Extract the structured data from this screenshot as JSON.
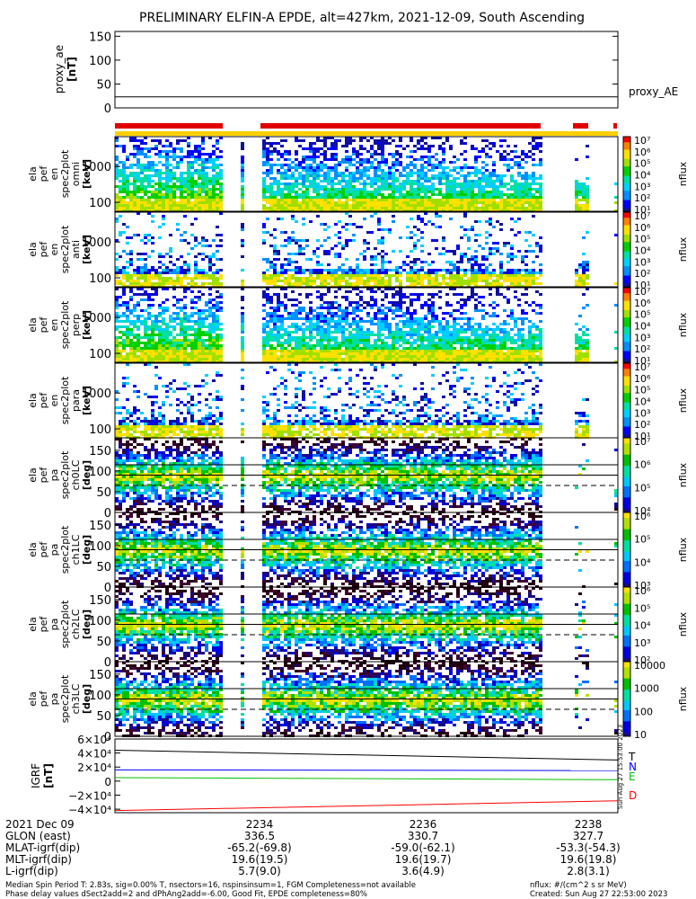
{
  "title": "PRELIMINARY ELFIN-A EPDE, alt=427km, 2021-12-09, South Ascending",
  "chart_data": [
    {
      "type": "line",
      "panel": "proxy_ae",
      "ylabel": [
        "proxy_ae",
        "[nT]"
      ],
      "yticks": [
        "150",
        "100",
        "50",
        "0"
      ],
      "ylim": [
        0,
        160
      ],
      "series": [
        {
          "name": "proxy_AE",
          "values": [
            23,
            23
          ]
        }
      ],
      "legend": "proxy_AE"
    },
    {
      "type": "heatmap",
      "panel": "ela_pef_en_spec2plot_omni",
      "ylabel": [
        "ela",
        "pef",
        "en",
        "spec2plot",
        "omni",
        "[keV]"
      ],
      "yticks": [
        "1000",
        "100"
      ],
      "cbar": {
        "label": "nflux",
        "ticks": [
          "10⁷",
          "10⁶",
          "10⁵",
          "10⁴",
          "10³",
          "10²",
          "10¹"
        ]
      }
    },
    {
      "type": "heatmap",
      "panel": "ela_pef_en_spec2plot_anti",
      "ylabel": [
        "ela",
        "pef",
        "en",
        "spec2plot",
        "anti",
        "[keV]"
      ],
      "yticks": [
        "1000",
        "100"
      ],
      "cbar": {
        "label": "nflux",
        "ticks": [
          "10⁷",
          "10⁶",
          "10⁵",
          "10⁴",
          "10³",
          "10²",
          "10¹"
        ]
      }
    },
    {
      "type": "heatmap",
      "panel": "ela_pef_en_spec2plot_perp",
      "ylabel": [
        "ela",
        "pef",
        "en",
        "spec2plot",
        "perp",
        "[keV]"
      ],
      "yticks": [
        "1000",
        "100"
      ],
      "cbar": {
        "label": "nflux",
        "ticks": [
          "10⁷",
          "10⁶",
          "10⁵",
          "10⁴",
          "10³",
          "10²",
          "10¹"
        ]
      }
    },
    {
      "type": "heatmap",
      "panel": "ela_pef_en_spec2plot_para",
      "ylabel": [
        "ela",
        "pef",
        "en",
        "spec2plot",
        "para",
        "[keV]"
      ],
      "yticks": [
        "1000",
        "100"
      ],
      "cbar": {
        "label": "nflux",
        "ticks": [
          "10⁷",
          "10⁶",
          "10⁵",
          "10⁴",
          "10³",
          "10²",
          "10¹"
        ]
      }
    },
    {
      "type": "heatmap",
      "panel": "ela_pef_pa_spec2plot_ch0LC",
      "ylabel": [
        "ela",
        "pef",
        "pa",
        "spec2plot",
        "ch0LC",
        "[deg]"
      ],
      "yticks": [
        "150",
        "100",
        "50",
        "0"
      ],
      "ylim": [
        0,
        180
      ],
      "cbar": {
        "label": "nflux",
        "ticks": [
          "10⁷",
          "10⁶",
          "10⁵",
          "10⁴"
        ]
      }
    },
    {
      "type": "heatmap",
      "panel": "ela_pef_pa_spec2plot_ch1LC",
      "ylabel": [
        "ela",
        "pef",
        "pa",
        "spec2plot",
        "ch1LC",
        "[deg]"
      ],
      "yticks": [
        "150",
        "100",
        "50",
        "0"
      ],
      "ylim": [
        0,
        180
      ],
      "cbar": {
        "label": "nflux",
        "ticks": [
          "10⁶",
          "10⁵",
          "10⁴",
          "10³"
        ]
      }
    },
    {
      "type": "heatmap",
      "panel": "ela_pef_pa_spec2plot_ch2LC",
      "ylabel": [
        "ela",
        "pef",
        "pa",
        "spec2plot",
        "ch2LC",
        "[deg]"
      ],
      "yticks": [
        "150",
        "100",
        "50",
        "0"
      ],
      "ylim": [
        0,
        180
      ],
      "cbar": {
        "label": "nflux",
        "ticks": [
          "10⁶",
          "10⁵",
          "10⁴",
          "10³",
          "10²"
        ]
      }
    },
    {
      "type": "heatmap",
      "panel": "ela_pef_pa_spec2plot_ch3LC",
      "ylabel": [
        "ela",
        "pef",
        "pa",
        "spec2plot",
        "ch3LC",
        "[deg]"
      ],
      "yticks": [
        "150",
        "100",
        "50",
        "0"
      ],
      "ylim": [
        0,
        180
      ],
      "cbar": {
        "label": "nflux",
        "ticks": [
          "10000",
          "1000",
          "100",
          "10"
        ]
      }
    },
    {
      "type": "line",
      "panel": "IGRF",
      "ylabel": [
        "IGRF",
        "[nT]"
      ],
      "yticks": [
        "6×10⁴",
        "4×10⁴",
        "2×10⁴",
        "0",
        "−2×10⁴",
        "−4×10⁴"
      ],
      "ylim": [
        -45000,
        60000
      ],
      "x": [
        0,
        1
      ],
      "series": [
        {
          "name": "T",
          "color": "#000000",
          "values": [
            44000,
            30000
          ]
        },
        {
          "name": "N",
          "color": "#0000ff",
          "values": [
            16000,
            15000
          ]
        },
        {
          "name": "E",
          "color": "#00c000",
          "values": [
            5000,
            2000
          ]
        },
        {
          "name": "D",
          "color": "#ff0000",
          "values": [
            -42000,
            -28000
          ]
        }
      ]
    }
  ],
  "side_label": "Sun Aug 27 15:53:00 2023",
  "xaxis": {
    "labels": [
      "2021 Dec 09",
      "GLON (east)",
      "MLAT-igrf(dip)",
      "MLT-igrf(dip)",
      "L-igrf(dip)"
    ],
    "columns": [
      {
        "time": "2234",
        "glon": "336.5",
        "mlat": "-65.2(-69.8)",
        "mlt": "19.6(19.5)",
        "l": "5.7(9.0)"
      },
      {
        "time": "2236",
        "glon": "330.7",
        "mlat": "-59.0(-62.1)",
        "mlt": "19.6(19.7)",
        "l": "3.6(4.9)"
      },
      {
        "time": "2238",
        "glon": "327.7",
        "mlat": "-53.3(-54.3)",
        "mlt": "19.6(19.8)",
        "l": "2.8(3.1)"
      }
    ]
  },
  "footer": {
    "line1": "Median Spin Period T: 2.83s, sig=0.00% T, nsectors=16, nspinsinsum=1, FGM Completeness=not available",
    "line2": "Phase delay values dSect2add=2 and dPhAng2add=-6.00, Good Fit, EPDE completeness=80%",
    "units": "nflux: #/(cm^2 s sr MeV)",
    "created": "Created: Sun Aug 27 22:53:00 2023"
  },
  "colors": {
    "accent_red": "#e00000",
    "accent_yellow": "#ffd000"
  }
}
